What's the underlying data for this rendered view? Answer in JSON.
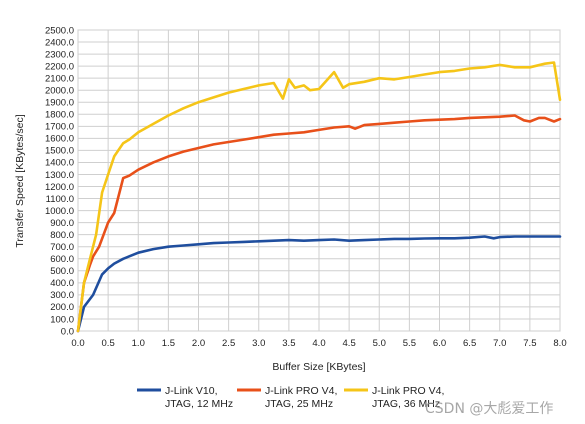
{
  "chart_data": {
    "type": "line",
    "xlabel": "Buffer Size [KBytes]",
    "ylabel": "Transfer Speed [KBytes/sec]",
    "xlim": [
      0,
      8
    ],
    "ylim": [
      0,
      2500
    ],
    "x_ticks": [
      "0.0",
      "0.5",
      "1.0",
      "1.5",
      "2.0",
      "2.5",
      "3.0",
      "3.5",
      "4.0",
      "4.5",
      "5.0",
      "5.5",
      "6.0",
      "6.5",
      "7.0",
      "7.5",
      "8.0"
    ],
    "y_ticks": [
      "0.0",
      "100.0",
      "200.0",
      "300.0",
      "400.0",
      "500.0",
      "600.0",
      "700.0",
      "800.0",
      "900.0",
      "1000.0",
      "1100.0",
      "1200.0",
      "1300.0",
      "1400.0",
      "1500.0",
      "1600.0",
      "1700.0",
      "1800.0",
      "1900.0",
      "2000.0",
      "2100.0",
      "2200.0",
      "2300.0",
      "2400.0",
      "2500.0"
    ],
    "grid": true,
    "legend_position": "bottom",
    "series": [
      {
        "name": "J-Link V10,\nJTAG, 12 MHz",
        "color": "#1f4e9e",
        "points": [
          [
            0,
            0
          ],
          [
            0.1,
            200
          ],
          [
            0.25,
            300
          ],
          [
            0.4,
            470
          ],
          [
            0.5,
            520
          ],
          [
            0.6,
            560
          ],
          [
            0.75,
            600
          ],
          [
            1.0,
            650
          ],
          [
            1.25,
            680
          ],
          [
            1.5,
            700
          ],
          [
            1.75,
            710
          ],
          [
            2.0,
            720
          ],
          [
            2.25,
            730
          ],
          [
            2.5,
            735
          ],
          [
            2.75,
            740
          ],
          [
            3.0,
            745
          ],
          [
            3.25,
            750
          ],
          [
            3.5,
            755
          ],
          [
            3.75,
            750
          ],
          [
            4.0,
            755
          ],
          [
            4.25,
            760
          ],
          [
            4.5,
            750
          ],
          [
            4.75,
            755
          ],
          [
            5.0,
            760
          ],
          [
            5.25,
            765
          ],
          [
            5.5,
            765
          ],
          [
            5.75,
            768
          ],
          [
            6.0,
            770
          ],
          [
            6.25,
            770
          ],
          [
            6.5,
            775
          ],
          [
            6.75,
            785
          ],
          [
            6.9,
            770
          ],
          [
            7.0,
            780
          ],
          [
            7.25,
            785
          ],
          [
            7.5,
            785
          ],
          [
            7.75,
            785
          ],
          [
            8.0,
            785
          ]
        ]
      },
      {
        "name": "J-Link PRO V4,\nJTAG, 25 MHz",
        "color": "#e8501a",
        "points": [
          [
            0,
            0
          ],
          [
            0.1,
            400
          ],
          [
            0.2,
            550
          ],
          [
            0.25,
            620
          ],
          [
            0.35,
            700
          ],
          [
            0.5,
            900
          ],
          [
            0.6,
            980
          ],
          [
            0.75,
            1270
          ],
          [
            0.85,
            1290
          ],
          [
            1.0,
            1340
          ],
          [
            1.25,
            1400
          ],
          [
            1.5,
            1450
          ],
          [
            1.75,
            1490
          ],
          [
            2.0,
            1520
          ],
          [
            2.25,
            1550
          ],
          [
            2.5,
            1570
          ],
          [
            2.75,
            1590
          ],
          [
            3.0,
            1610
          ],
          [
            3.25,
            1630
          ],
          [
            3.5,
            1640
          ],
          [
            3.75,
            1650
          ],
          [
            4.0,
            1670
          ],
          [
            4.25,
            1690
          ],
          [
            4.5,
            1700
          ],
          [
            4.6,
            1680
          ],
          [
            4.75,
            1710
          ],
          [
            5.0,
            1720
          ],
          [
            5.25,
            1730
          ],
          [
            5.5,
            1740
          ],
          [
            5.75,
            1750
          ],
          [
            6.0,
            1755
          ],
          [
            6.25,
            1760
          ],
          [
            6.5,
            1770
          ],
          [
            6.75,
            1775
          ],
          [
            7.0,
            1780
          ],
          [
            7.25,
            1790
          ],
          [
            7.4,
            1750
          ],
          [
            7.5,
            1740
          ],
          [
            7.65,
            1770
          ],
          [
            7.75,
            1770
          ],
          [
            7.9,
            1740
          ],
          [
            8.0,
            1760
          ]
        ]
      },
      {
        "name": "J-Link PRO V4,\nJTAG, 36 MHz",
        "color": "#f5c518",
        "points": [
          [
            0,
            0
          ],
          [
            0.1,
            400
          ],
          [
            0.2,
            600
          ],
          [
            0.3,
            800
          ],
          [
            0.4,
            1150
          ],
          [
            0.5,
            1300
          ],
          [
            0.6,
            1450
          ],
          [
            0.75,
            1560
          ],
          [
            0.85,
            1590
          ],
          [
            1.0,
            1650
          ],
          [
            1.25,
            1720
          ],
          [
            1.5,
            1790
          ],
          [
            1.75,
            1850
          ],
          [
            2.0,
            1900
          ],
          [
            2.25,
            1940
          ],
          [
            2.5,
            1980
          ],
          [
            2.75,
            2010
          ],
          [
            3.0,
            2040
          ],
          [
            3.25,
            2060
          ],
          [
            3.4,
            1930
          ],
          [
            3.5,
            2090
          ],
          [
            3.6,
            2020
          ],
          [
            3.75,
            2040
          ],
          [
            3.85,
            2000
          ],
          [
            4.0,
            2010
          ],
          [
            4.25,
            2150
          ],
          [
            4.4,
            2020
          ],
          [
            4.5,
            2050
          ],
          [
            4.75,
            2070
          ],
          [
            5.0,
            2100
          ],
          [
            5.25,
            2090
          ],
          [
            5.5,
            2110
          ],
          [
            5.75,
            2130
          ],
          [
            6.0,
            2150
          ],
          [
            6.25,
            2160
          ],
          [
            6.5,
            2180
          ],
          [
            6.75,
            2190
          ],
          [
            7.0,
            2210
          ],
          [
            7.25,
            2190
          ],
          [
            7.5,
            2190
          ],
          [
            7.75,
            2220
          ],
          [
            7.9,
            2230
          ],
          [
            8.0,
            1920
          ]
        ]
      }
    ]
  },
  "watermark": "CSDN @大彪爱工作"
}
